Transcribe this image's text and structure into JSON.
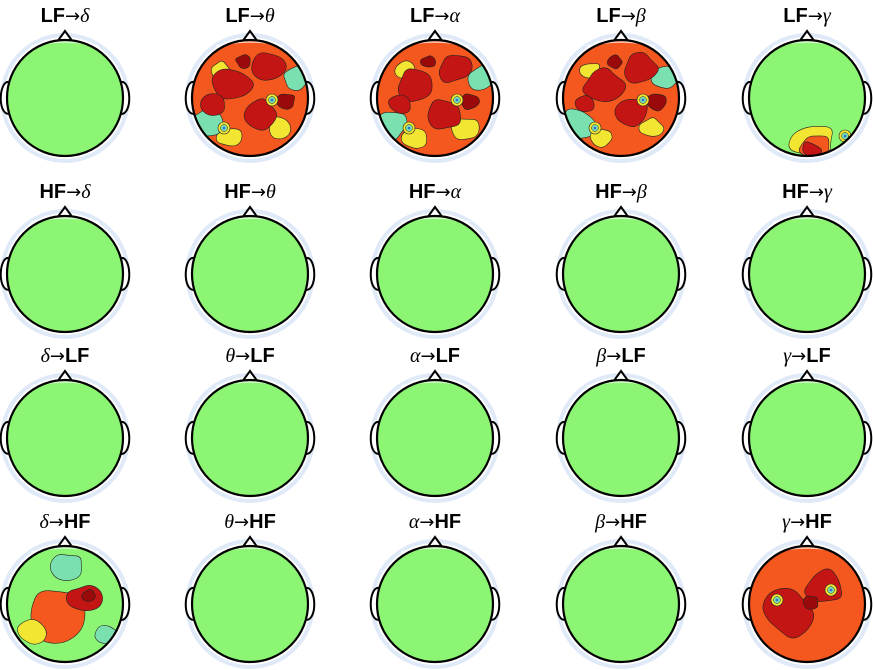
{
  "figure": {
    "rows": [
      {
        "cells": [
          {
            "label": [
              "LF",
              "→",
              "δ"
            ],
            "pattern": "none"
          },
          {
            "label": [
              "LF",
              "→",
              "θ"
            ],
            "pattern": "dense"
          },
          {
            "label": [
              "LF",
              "→",
              "α"
            ],
            "pattern": "dense"
          },
          {
            "label": [
              "LF",
              "→",
              "β"
            ],
            "pattern": "dense"
          },
          {
            "label": [
              "LF",
              "→",
              "γ"
            ],
            "pattern": "lower-blob"
          }
        ]
      },
      {
        "cells": [
          {
            "label": [
              "HF",
              "→",
              "δ"
            ],
            "pattern": "none"
          },
          {
            "label": [
              "HF",
              "→",
              "θ"
            ],
            "pattern": "none"
          },
          {
            "label": [
              "HF",
              "→",
              "α"
            ],
            "pattern": "none"
          },
          {
            "label": [
              "HF",
              "→",
              "β"
            ],
            "pattern": "none"
          },
          {
            "label": [
              "HF",
              "→",
              "γ"
            ],
            "pattern": "none"
          }
        ]
      },
      {
        "cells": [
          {
            "label": [
              "δ",
              "→",
              "LF"
            ],
            "pattern": "none"
          },
          {
            "label": [
              "θ",
              "→",
              "LF"
            ],
            "pattern": "none"
          },
          {
            "label": [
              "α",
              "→",
              "LF"
            ],
            "pattern": "none"
          },
          {
            "label": [
              "β",
              "→",
              "LF"
            ],
            "pattern": "none"
          },
          {
            "label": [
              "γ",
              "→",
              "LF"
            ],
            "pattern": "none"
          }
        ]
      },
      {
        "cells": [
          {
            "label": [
              "δ",
              "→",
              "HF"
            ],
            "pattern": "mixed"
          },
          {
            "label": [
              "θ",
              "→",
              "HF"
            ],
            "pattern": "none"
          },
          {
            "label": [
              "α",
              "→",
              "HF"
            ],
            "pattern": "none"
          },
          {
            "label": [
              "β",
              "→",
              "HF"
            ],
            "pattern": "none"
          },
          {
            "label": [
              "γ",
              "→",
              "HF"
            ],
            "pattern": "full-red"
          }
        ]
      }
    ],
    "colors": {
      "baseline": "#8cf573",
      "warm": "#f5581e",
      "hot": "#c41515",
      "peak": "#9a0a0a",
      "yellow": "#f2e633",
      "cool": "#7be0b0",
      "outline": "#000000",
      "halo": "#dfe9f7"
    }
  }
}
